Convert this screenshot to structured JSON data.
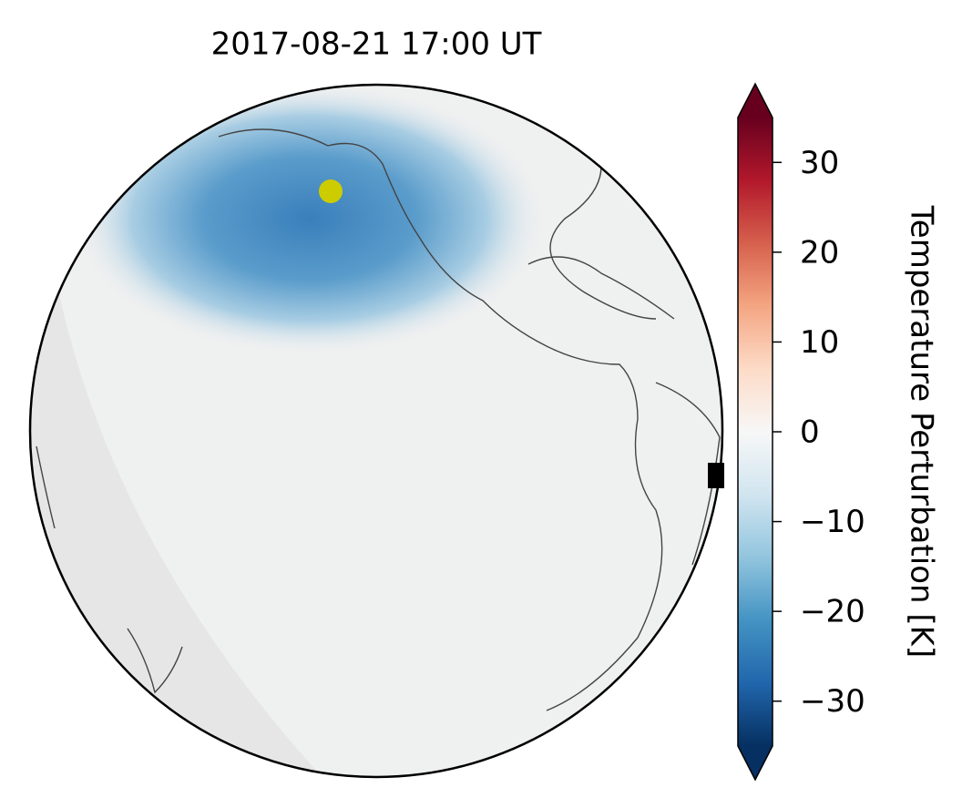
{
  "title": "2017-08-21  17:00 UT",
  "colorbar": {
    "label": "Temperature Perturbation [K]",
    "lim": [
      -35,
      35
    ],
    "ticks": [
      {
        "value": -30,
        "label": "−30"
      },
      {
        "value": -20,
        "label": "−20"
      },
      {
        "value": -10,
        "label": "−10"
      },
      0,
      10,
      20,
      30
    ]
  }
}
